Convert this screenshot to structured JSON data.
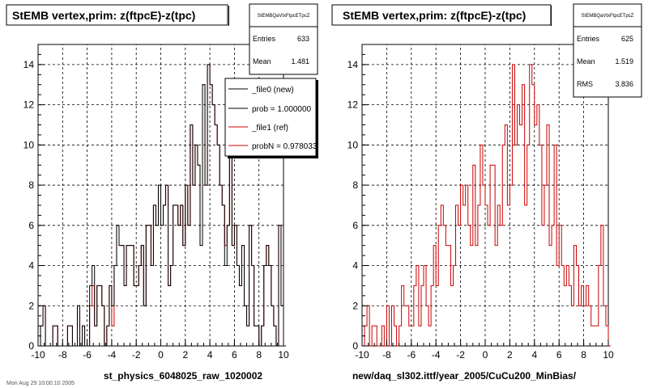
{
  "footer_text": "Mon Aug 29 10:00:10 2005",
  "panels": [
    {
      "title": "StEMB  vertex,prim: z(ftpcE)-z(tpc)",
      "stats": {
        "name": "StEMBQaVtxFtpcETpcZ",
        "rows": [
          {
            "label": "Entries",
            "value": "633"
          },
          {
            "label": "Mean",
            "value": "1.481"
          }
        ]
      },
      "legend": [
        {
          "label": "_file0 (new)",
          "color": "#000000"
        },
        {
          "label": "prob = 1.000000",
          "color": "#000000"
        },
        {
          "label": "_file1 (ref)",
          "color": "#cc0000"
        },
        {
          "label": "probN = 0.978033",
          "color": "#cc0000"
        }
      ],
      "xlabel_caption": "st_physics_6048025_raw_1020002"
    },
    {
      "title": "StEMB  vertex,prim: z(ftpcE)-z(tpc)",
      "stats": {
        "name": "StEMBQaVtxFtpcETpcZ",
        "rows": [
          {
            "label": "Entries",
            "value": "625"
          },
          {
            "label": "Mean",
            "value": "1.519"
          },
          {
            "label": "RMS",
            "value": "3.836"
          }
        ]
      },
      "legend": [],
      "xlabel_caption": "new/daq_sl302.ittf/year_2005/CuCu200_MinBias/"
    }
  ],
  "chart_data": [
    {
      "type": "histogram",
      "title": "StEMB  vertex,prim: z(ftpcE)-z(tpc)",
      "xlim": [
        -10,
        10
      ],
      "ylim": [
        0,
        15
      ],
      "xticks": [
        -10,
        -8,
        -6,
        -4,
        -2,
        0,
        2,
        4,
        6,
        8,
        10
      ],
      "yticks": [
        0,
        2,
        4,
        6,
        8,
        10,
        12,
        14
      ],
      "grid": true,
      "bin_width": 0.2,
      "series": [
        {
          "name": "_file1 (ref)",
          "color": "#cc0000",
          "values": [
            0,
            1,
            2,
            0,
            0,
            0,
            1,
            1,
            0,
            0,
            0,
            0,
            1,
            1,
            0,
            0,
            2,
            0,
            1,
            0,
            0,
            2,
            3,
            1,
            3,
            3,
            2,
            0,
            1,
            3,
            1,
            4,
            6,
            5,
            5,
            3,
            5,
            5,
            5,
            3,
            3,
            4,
            5,
            2,
            6,
            6,
            4,
            7,
            6,
            8,
            6,
            7,
            8,
            3,
            4,
            7,
            7,
            6,
            7,
            5,
            8,
            6,
            11,
            8,
            10,
            9,
            5,
            13,
            8,
            14,
            13,
            12,
            11,
            10,
            8,
            7,
            5,
            6,
            11,
            5,
            6,
            4,
            3,
            5,
            2,
            1,
            6,
            4,
            1,
            1,
            0,
            1,
            4,
            5,
            4,
            2,
            1,
            0,
            6,
            2,
            0
          ]
        },
        {
          "name": "_file0 (new)",
          "color": "#000000",
          "values": [
            0,
            1,
            2,
            0,
            0,
            0,
            1,
            1,
            0,
            0,
            0,
            0,
            1,
            1,
            0,
            0,
            2,
            0,
            1,
            0,
            0,
            3,
            4,
            1,
            3,
            3,
            2,
            0,
            1,
            3,
            2,
            4,
            6,
            5,
            5,
            3,
            5,
            5,
            5,
            3,
            3,
            4,
            5,
            2,
            6,
            6,
            4,
            7,
            6,
            8,
            6,
            7,
            8,
            3,
            4,
            7,
            7,
            6,
            7,
            5,
            8,
            6,
            11,
            8,
            10,
            9,
            5,
            13,
            8,
            14,
            13,
            12,
            11,
            10,
            8,
            7,
            4,
            6,
            11,
            5,
            6,
            4,
            3,
            5,
            2,
            1,
            6,
            4,
            1,
            1,
            0,
            1,
            4,
            5,
            4,
            2,
            1,
            0,
            6,
            2,
            0
          ]
        }
      ]
    },
    {
      "type": "histogram",
      "title": "StEMB  vertex,prim: z(ftpcE)-z(tpc)",
      "xlim": [
        -10,
        10
      ],
      "ylim": [
        0,
        15
      ],
      "xticks": [
        -10,
        -8,
        -6,
        -4,
        -2,
        0,
        2,
        4,
        6,
        8,
        10
      ],
      "yticks": [
        0,
        2,
        4,
        6,
        8,
        10,
        12,
        14
      ],
      "grid": true,
      "bin_width": 0.2,
      "series": [
        {
          "name": "",
          "color": "#cc0000",
          "values": [
            0,
            1,
            2,
            0,
            1,
            1,
            0,
            0,
            1,
            0,
            2,
            0,
            2,
            1,
            0,
            1,
            3,
            2,
            2,
            1,
            1,
            3,
            4,
            1,
            3,
            4,
            2,
            1,
            3,
            5,
            3,
            6,
            7,
            6,
            5,
            5,
            3,
            4,
            7,
            6,
            8,
            7,
            8,
            6,
            5,
            9,
            5,
            7,
            10,
            8,
            7,
            6,
            9,
            9,
            5,
            7,
            6,
            10,
            11,
            7,
            8,
            14,
            10,
            12,
            11,
            13,
            7,
            10,
            14,
            13,
            11,
            12,
            10,
            6,
            8,
            11,
            5,
            6,
            10,
            4,
            6,
            4,
            3,
            4,
            3,
            2,
            5,
            4,
            2,
            3,
            2,
            3,
            2,
            1,
            1,
            1,
            4,
            6,
            2,
            1,
            0
          ]
        }
      ]
    }
  ]
}
